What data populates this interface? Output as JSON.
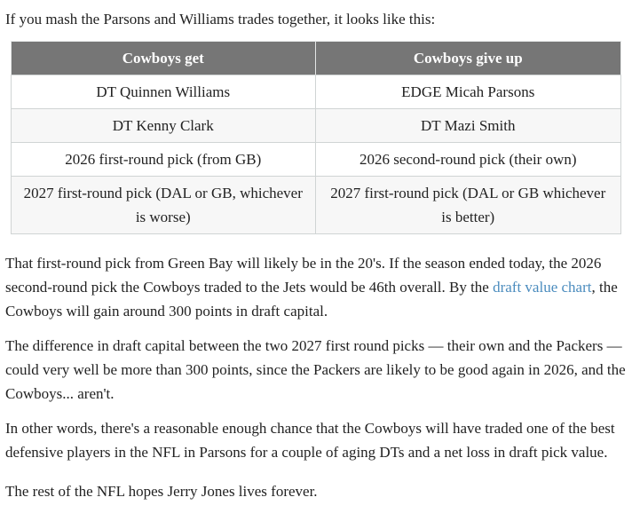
{
  "article": {
    "intro": "If you mash the Parsons and Williams trades together, it looks like this:",
    "table": {
      "headers": [
        "Cowboys get",
        "Cowboys give up"
      ],
      "rows": [
        [
          "DT Quinnen Williams",
          "EDGE Micah Parsons"
        ],
        [
          "DT Kenny Clark",
          "DT Mazi Smith"
        ],
        [
          "2026 first-round pick (from GB)",
          "2026 second-round pick (their own)"
        ],
        [
          "2027 first-round pick (DAL or GB, whichever is worse)",
          "2027 first-round pick (DAL or GB whichever is better)"
        ]
      ]
    },
    "p_draft_value": {
      "before": "That first-round pick from Green Bay will likely be in the 20's. If the season ended today, the 2026 second-round pick the Cowboys traded to the Jets would be 46th overall. By the ",
      "link": "draft value chart",
      "after": ", the Cowboys will gain around 300 points in draft capital."
    },
    "p_difference": "The difference in draft capital between the two 2027 first round picks — their own and the Packers — could very well be more than 300 points, since the Packers are likely to be good again in 2026, and the Cowboys... aren't.",
    "p_other_words": "In other words, there's a reasonable enough chance that the Cowboys will have traded one of the best defensive players in the NFL in Parsons for a couple of aging DTs and a net loss in draft pick value.",
    "p_closing": "The rest of the NFL hopes Jerry Jones lives forever."
  },
  "colors": {
    "header_bg": "#767676",
    "header_text": "#ffffff",
    "row_alt_bg": "#f7f7f7",
    "border": "#d0d4d4",
    "link": "#4b8cbe",
    "text": "#222222"
  }
}
